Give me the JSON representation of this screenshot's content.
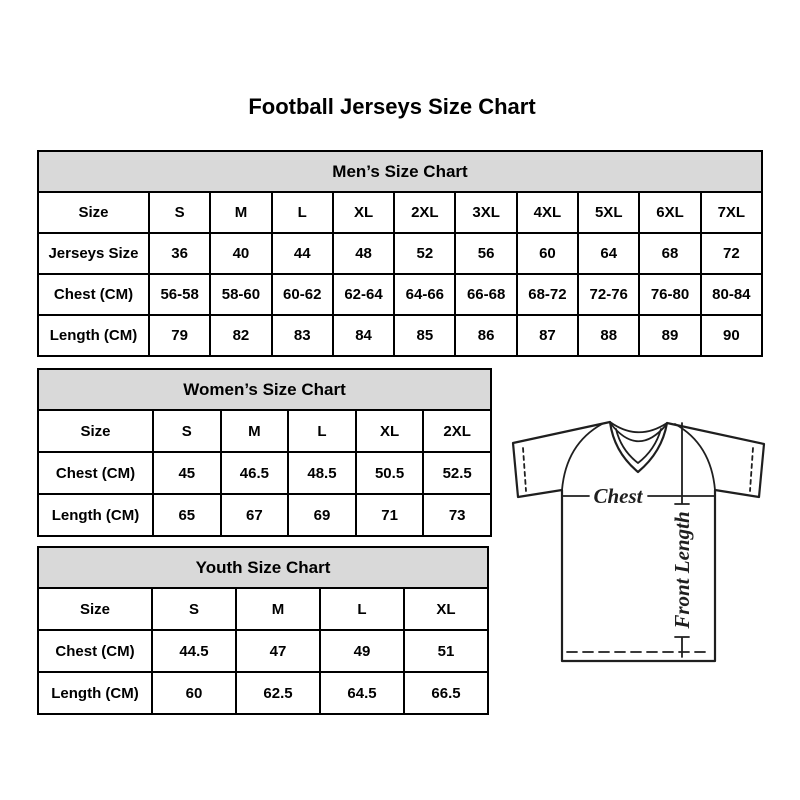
{
  "title": "Football Jerseys Size Chart",
  "colors": {
    "header_bg": "#d9d9d9",
    "border": "#000000",
    "text": "#000000",
    "background": "#ffffff"
  },
  "tables": {
    "mens": {
      "title": "Men’s Size Chart",
      "rows": [
        [
          "Size",
          "S",
          "M",
          "L",
          "XL",
          "2XL",
          "3XL",
          "4XL",
          "5XL",
          "6XL",
          "7XL"
        ],
        [
          "Jerseys Size",
          "36",
          "40",
          "44",
          "48",
          "52",
          "56",
          "60",
          "64",
          "68",
          "72"
        ],
        [
          "Chest (CM)",
          "56-58",
          "58-60",
          "60-62",
          "62-64",
          "64-66",
          "66-68",
          "68-72",
          "72-76",
          "76-80",
          "80-84"
        ],
        [
          "Length (CM)",
          "79",
          "82",
          "83",
          "84",
          "85",
          "86",
          "87",
          "88",
          "89",
          "90"
        ]
      ]
    },
    "womens": {
      "title": "Women’s Size Chart",
      "rows": [
        [
          "Size",
          "S",
          "M",
          "L",
          "XL",
          "2XL"
        ],
        [
          "Chest (CM)",
          "45",
          "46.5",
          "48.5",
          "50.5",
          "52.5"
        ],
        [
          "Length (CM)",
          "65",
          "67",
          "69",
          "71",
          "73"
        ]
      ]
    },
    "youth": {
      "title": "Youth Size Chart",
      "rows": [
        [
          "Size",
          "S",
          "M",
          "L",
          "XL"
        ],
        [
          "Chest (CM)",
          "44.5",
          "47",
          "49",
          "51"
        ],
        [
          "Length (CM)",
          "60",
          "62.5",
          "64.5",
          "66.5"
        ]
      ]
    }
  },
  "diagram": {
    "chest_label": "Chest",
    "front_length_label": "Front Length"
  }
}
